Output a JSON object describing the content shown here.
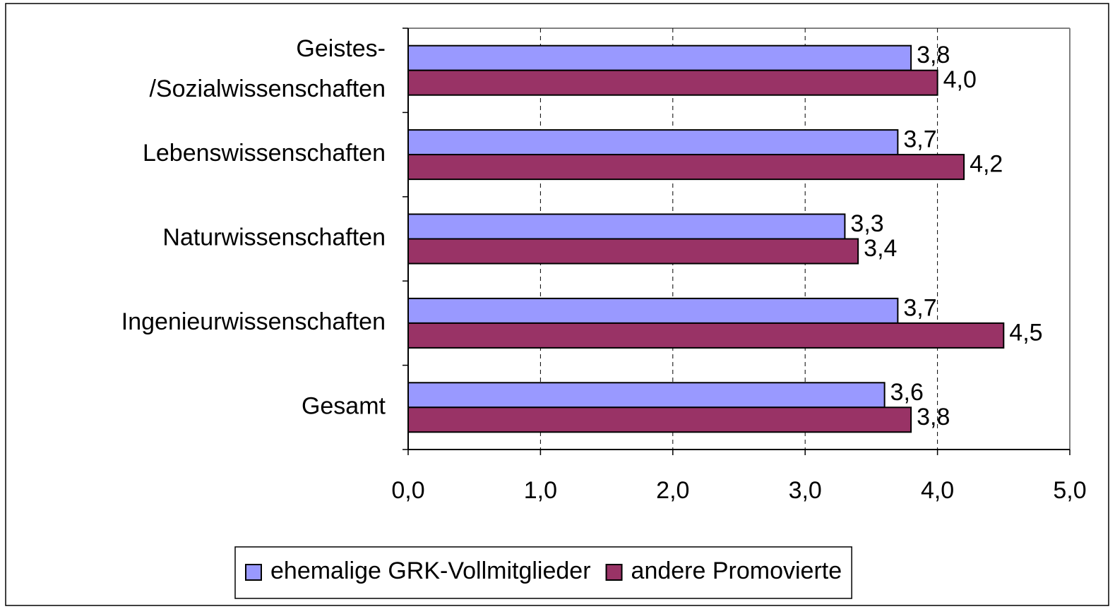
{
  "chart_data": {
    "type": "bar",
    "orientation": "horizontal",
    "categories": [
      "Geistes-\n/Sozialwissenschaften",
      "Lebenswissenschaften",
      "Naturwissenschaften",
      "Ingenieurwissenschaften",
      "Gesamt"
    ],
    "series": [
      {
        "name": "ehemalige GRK-Vollmitglieder",
        "color": "#9999ff",
        "values": [
          3.8,
          3.7,
          3.3,
          3.7,
          3.6
        ],
        "value_labels": [
          "3,8",
          "3,7",
          "3,3",
          "3,7",
          "3,6"
        ]
      },
      {
        "name": "andere Promovierte",
        "color": "#993366",
        "values": [
          4.0,
          4.2,
          3.4,
          4.5,
          3.8
        ],
        "value_labels": [
          "4,0",
          "4,2",
          "3,4",
          "4,5",
          "3,8"
        ]
      }
    ],
    "xlim": [
      0,
      5
    ],
    "xticks": [
      {
        "value": 0,
        "label": "0,0"
      },
      {
        "value": 1,
        "label": "1,0"
      },
      {
        "value": 2,
        "label": "2,0"
      },
      {
        "value": 3,
        "label": "3,0"
      },
      {
        "value": 4,
        "label": "4,0"
      },
      {
        "value": 5,
        "label": "5,0"
      }
    ],
    "grid": true,
    "legend": "bottom"
  }
}
